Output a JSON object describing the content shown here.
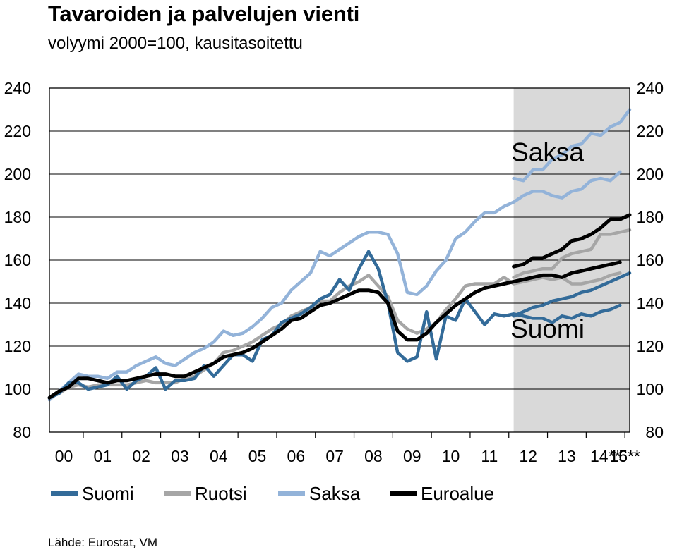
{
  "chart_data": {
    "type": "line",
    "title": "Tavaroiden ja palvelujen vienti",
    "subtitle": "volyymi 2000=100, kausitasoitettu",
    "source": "Lähde: Eurostat, VM",
    "xlabel": "",
    "ylabel": "",
    "ylim": [
      80,
      240
    ],
    "yticks": [
      80,
      100,
      120,
      140,
      160,
      180,
      200,
      220,
      240
    ],
    "xlim": [
      0,
      60
    ],
    "x_tick_labels": [
      "00",
      "01",
      "02",
      "03",
      "04",
      "05",
      "06",
      "07",
      "08",
      "09",
      "10",
      "11",
      "12",
      "13",
      "14**",
      "15**",
      "16**"
    ],
    "x": [
      0,
      1,
      2,
      3,
      4,
      5,
      6,
      7,
      8,
      9,
      10,
      11,
      12,
      13,
      14,
      15,
      16,
      17,
      18,
      19,
      20,
      21,
      22,
      23,
      24,
      25,
      26,
      27,
      28,
      29,
      30,
      31,
      32,
      33,
      34,
      35,
      36,
      37,
      38,
      39,
      40,
      41,
      42,
      43,
      44,
      45,
      46,
      47,
      48,
      49,
      50,
      51,
      52,
      53,
      54,
      55,
      56,
      57,
      58,
      59
    ],
    "forecast_start": 48,
    "grid": true,
    "legend_position": "bottom",
    "series": [
      {
        "name": "Suomi",
        "color": "#336b99",
        "values": [
          96,
          98,
          103,
          103,
          100,
          101,
          102,
          106,
          100,
          104,
          106,
          110,
          100,
          104,
          104,
          105,
          111,
          106,
          111,
          116,
          116,
          113,
          123,
          125,
          131,
          133,
          135,
          138,
          142,
          144,
          151,
          146,
          156,
          164,
          156,
          140,
          117,
          113,
          115,
          136,
          114,
          134,
          132,
          142,
          136,
          130,
          135,
          134,
          135,
          134,
          133,
          133,
          131,
          134,
          133,
          135,
          134,
          136,
          137,
          139
        ]
      },
      {
        "name": "Ruotsi",
        "color": "#a6a6a6",
        "values": [
          96,
          98,
          101,
          102,
          101,
          102,
          102,
          102,
          102,
          103,
          104,
          103,
          103,
          103,
          105,
          106,
          109,
          112,
          117,
          118,
          120,
          122,
          125,
          128,
          130,
          134,
          136,
          138,
          141,
          141,
          145,
          148,
          150,
          153,
          148,
          143,
          132,
          128,
          126,
          128,
          131,
          137,
          142,
          148,
          149,
          149,
          149,
          152,
          149,
          150,
          151,
          152,
          151,
          152,
          149,
          149,
          150,
          151,
          153,
          154
        ]
      },
      {
        "name": "Saksa",
        "color": "#93b3d9",
        "values": [
          95,
          99,
          103,
          107,
          106,
          106,
          105,
          108,
          108,
          111,
          113,
          115,
          112,
          111,
          114,
          117,
          119,
          122,
          127,
          125,
          126,
          129,
          133,
          138,
          140,
          146,
          150,
          154,
          164,
          162,
          165,
          168,
          171,
          173,
          173,
          172,
          163,
          145,
          144,
          148,
          155,
          160,
          170,
          173,
          178,
          182,
          182,
          185,
          187,
          190,
          192,
          192,
          190,
          189,
          192,
          193,
          197,
          198,
          197,
          201
        ]
      },
      {
        "name": "Euroalue",
        "color": "#000000",
        "values": [
          96,
          99,
          101,
          105,
          105,
          104,
          103,
          104,
          104,
          105,
          106,
          107,
          107,
          106,
          106,
          108,
          110,
          112,
          115,
          116,
          117,
          119,
          122,
          125,
          128,
          132,
          133,
          136,
          139,
          140,
          142,
          144,
          146,
          146,
          145,
          140,
          127,
          123,
          123,
          126,
          131,
          135,
          139,
          142,
          145,
          147,
          148,
          149,
          150,
          151,
          152,
          153,
          153,
          152,
          154,
          155,
          156,
          157,
          158,
          159
        ]
      }
    ],
    "forecast_series": [
      {
        "name": "Suomi",
        "color": "#336b99",
        "x": [
          48,
          49,
          50,
          51,
          52,
          53,
          54,
          55,
          56,
          57,
          58,
          59,
          60
        ],
        "values": [
          134,
          136,
          138,
          139,
          141,
          142,
          143,
          145,
          146,
          148,
          150,
          152,
          154
        ]
      },
      {
        "name": "Ruotsi",
        "color": "#a6a6a6",
        "x": [
          48,
          49,
          50,
          51,
          52,
          53,
          54,
          55,
          56,
          57,
          58,
          59,
          60
        ],
        "values": [
          152,
          154,
          155,
          156,
          156,
          161,
          163,
          164,
          165,
          172,
          172,
          173,
          174
        ]
      },
      {
        "name": "Saksa",
        "color": "#93b3d9",
        "x": [
          48,
          49,
          50,
          51,
          52,
          53,
          54,
          55,
          56,
          57,
          58,
          59,
          60
        ],
        "values": [
          198,
          197,
          202,
          202,
          207,
          209,
          213,
          214,
          219,
          218,
          222,
          224,
          230
        ]
      },
      {
        "name": "Euroalue",
        "color": "#000000",
        "x": [
          48,
          49,
          50,
          51,
          52,
          53,
          54,
          55,
          56,
          57,
          58,
          59,
          60
        ],
        "values": [
          157,
          158,
          161,
          161,
          163,
          165,
          169,
          170,
          172,
          175,
          179,
          179,
          181
        ]
      }
    ],
    "annotations": [
      {
        "text": "Saksa",
        "x": 51.5,
        "y": 206
      },
      {
        "text": "Suomi",
        "x": 51.5,
        "y": 124
      }
    ]
  }
}
